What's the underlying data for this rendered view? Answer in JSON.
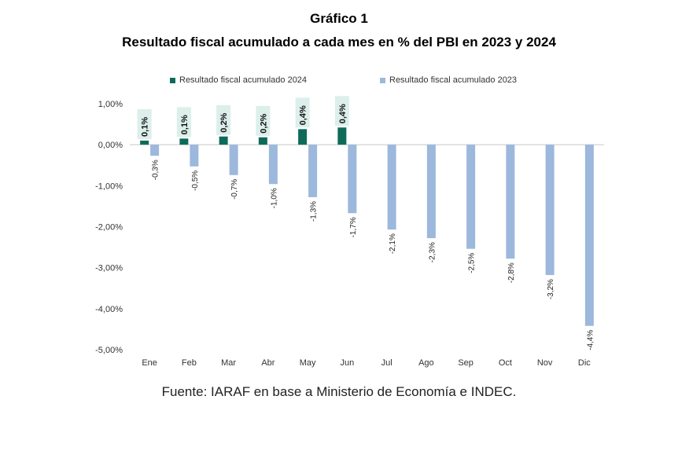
{
  "page": {
    "title_line1": "Gráfico 1",
    "title_line2": "Resultado fiscal acumulado a cada mes en % del PBI en 2023 y 2024",
    "source": "Fuente: IARAF en base a Ministerio de Economía e INDEC."
  },
  "chart_data": {
    "type": "bar",
    "title": "Resultado fiscal acumulado a cada mes en % del PBI en 2023 y 2024",
    "xlabel": "",
    "ylabel": "",
    "ylim": [
      -5.0,
      1.0
    ],
    "yticks": [
      1.0,
      0.0,
      -1.0,
      -2.0,
      -3.0,
      -4.0,
      -5.0
    ],
    "ytick_labels": [
      "1,00%",
      "0,00%",
      "-1,00%",
      "-2,00%",
      "-3,00%",
      "-4,00%",
      "-5,00%"
    ],
    "legend_position": "top",
    "grid": false,
    "categories": [
      "Ene",
      "Feb",
      "Mar",
      "Abr",
      "May",
      "Jun",
      "Jul",
      "Ago",
      "Sep",
      "Oct",
      "Nov",
      "Dic"
    ],
    "series": [
      {
        "name": "Resultado fiscal acumulado 2024",
        "color": "#0e6b5a",
        "values": [
          0.1,
          0.15,
          0.2,
          0.18,
          0.38,
          0.42,
          null,
          null,
          null,
          null,
          null,
          null
        ],
        "labels": [
          "0,1%",
          "0,1%",
          "0,2%",
          "0,2%",
          "0,4%",
          "0,4%",
          "",
          "",
          "",
          "",
          "",
          ""
        ]
      },
      {
        "name": "Resultado fiscal acumulado 2023",
        "color": "#9cb8dc",
        "values": [
          -0.27,
          -0.53,
          -0.74,
          -0.96,
          -1.28,
          -1.67,
          -2.07,
          -2.28,
          -2.54,
          -2.78,
          -3.18,
          -4.42
        ],
        "labels": [
          "-0,3%",
          "-0,5%",
          "-0,7%",
          "-1,0%",
          "-1,3%",
          "-1,7%",
          "-2,1%",
          "-2,3%",
          "-2,5%",
          "-2,8%",
          "-3,2%",
          "-4,4%"
        ]
      }
    ]
  }
}
